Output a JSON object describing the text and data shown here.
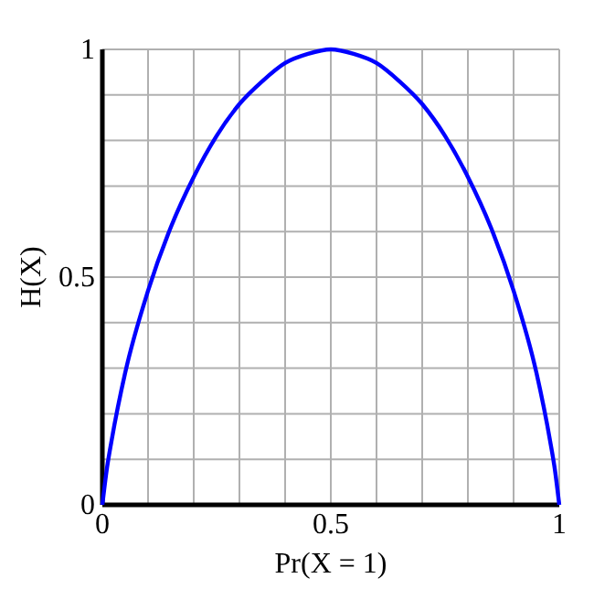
{
  "chart_data": {
    "type": "line",
    "xlabel": "Pr(X = 1)",
    "ylabel": "H(X)",
    "x": [
      0,
      0.01,
      0.02,
      0.05,
      0.1,
      0.15,
      0.2,
      0.25,
      0.3,
      0.35,
      0.4,
      0.45,
      0.5,
      0.55,
      0.6,
      0.65,
      0.7,
      0.75,
      0.8,
      0.85,
      0.9,
      0.95,
      0.98,
      0.99,
      1
    ],
    "series": [
      {
        "color": "#0000ff",
        "values": [
          0,
          0.08,
          0.14,
          0.29,
          0.47,
          0.61,
          0.72,
          0.81,
          0.88,
          0.93,
          0.97,
          0.99,
          1,
          0.99,
          0.97,
          0.93,
          0.88,
          0.81,
          0.72,
          0.61,
          0.47,
          0.29,
          0.14,
          0.08,
          0
        ]
      }
    ],
    "xlim": [
      0,
      1
    ],
    "ylim": [
      0,
      1
    ],
    "xticks": [
      0,
      {
        "value": 0.1,
        "label": null
      },
      {
        "value": 0.2,
        "label": null
      },
      {
        "value": 0.3,
        "label": null
      },
      {
        "value": 0.4,
        "label": null
      },
      0.5,
      {
        "value": 0.6,
        "label": null
      },
      {
        "value": 0.7,
        "label": null
      },
      {
        "value": 0.8,
        "label": null
      },
      {
        "value": 0.9,
        "label": null
      },
      1
    ],
    "yticks": [
      0,
      {
        "value": 0.1,
        "label": null
      },
      {
        "value": 0.2,
        "label": null
      },
      {
        "value": 0.3,
        "label": null
      },
      {
        "value": 0.4,
        "label": null
      },
      0.5,
      {
        "value": 0.6,
        "label": null
      },
      {
        "value": 0.7,
        "label": null
      },
      {
        "value": 0.8,
        "label": null
      },
      {
        "value": 0.9,
        "label": null
      },
      1
    ],
    "grid": true,
    "line_style": "solid",
    "marker": "none"
  }
}
